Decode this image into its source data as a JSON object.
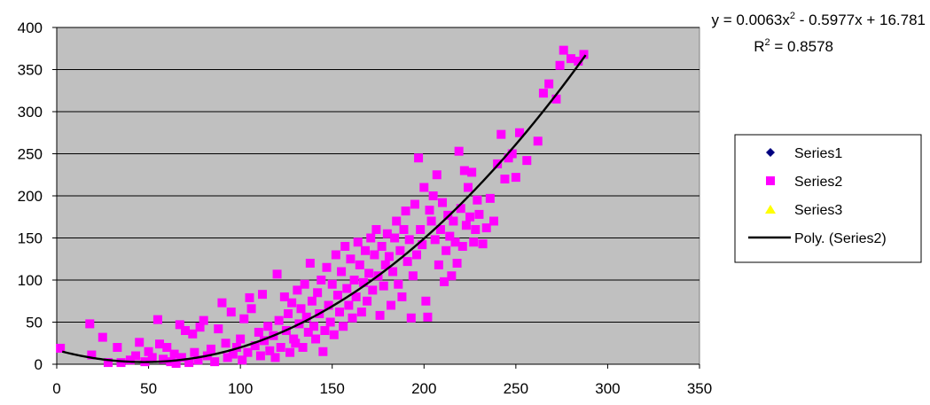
{
  "chart_data": {
    "type": "scatter",
    "title": "",
    "xlabel": "",
    "ylabel": "",
    "xlim": [
      0,
      350
    ],
    "ylim": [
      0,
      400
    ],
    "x_ticks": [
      0,
      50,
      100,
      150,
      200,
      250,
      300,
      350
    ],
    "y_ticks": [
      0,
      50,
      100,
      150,
      200,
      250,
      300,
      350,
      400
    ],
    "grid": "horizontal",
    "plot_background": "#c0c0c0",
    "legend_position": "right",
    "series": [
      {
        "name": "Series1",
        "marker": "diamond",
        "color": "#000080",
        "points": []
      },
      {
        "name": "Series2",
        "marker": "square",
        "color": "#ff00ff",
        "points": [
          [
            2,
            19
          ],
          [
            18,
            48
          ],
          [
            19,
            11
          ],
          [
            25,
            32
          ],
          [
            28,
            2
          ],
          [
            33,
            20
          ],
          [
            35,
            2
          ],
          [
            40,
            5
          ],
          [
            43,
            10
          ],
          [
            45,
            26
          ],
          [
            48,
            3
          ],
          [
            50,
            15
          ],
          [
            52,
            8
          ],
          [
            55,
            53
          ],
          [
            56,
            24
          ],
          [
            58,
            6
          ],
          [
            60,
            20
          ],
          [
            62,
            3
          ],
          [
            64,
            12
          ],
          [
            65,
            1
          ],
          [
            67,
            47
          ],
          [
            68,
            8
          ],
          [
            70,
            40
          ],
          [
            72,
            2
          ],
          [
            74,
            36
          ],
          [
            75,
            14
          ],
          [
            77,
            5
          ],
          [
            78,
            44
          ],
          [
            80,
            52
          ],
          [
            82,
            10
          ],
          [
            84,
            18
          ],
          [
            86,
            3
          ],
          [
            88,
            42
          ],
          [
            90,
            73
          ],
          [
            92,
            25
          ],
          [
            93,
            8
          ],
          [
            95,
            62
          ],
          [
            96,
            12
          ],
          [
            98,
            20
          ],
          [
            100,
            30
          ],
          [
            101,
            5
          ],
          [
            102,
            54
          ],
          [
            104,
            14
          ],
          [
            105,
            79
          ],
          [
            106,
            66
          ],
          [
            108,
            22
          ],
          [
            110,
            38
          ],
          [
            111,
            10
          ],
          [
            112,
            83
          ],
          [
            113,
            28
          ],
          [
            115,
            45
          ],
          [
            116,
            16
          ],
          [
            118,
            34
          ],
          [
            119,
            8
          ],
          [
            120,
            107
          ],
          [
            121,
            52
          ],
          [
            122,
            20
          ],
          [
            124,
            80
          ],
          [
            125,
            40
          ],
          [
            126,
            60
          ],
          [
            127,
            14
          ],
          [
            128,
            73
          ],
          [
            129,
            30
          ],
          [
            130,
            25
          ],
          [
            131,
            88
          ],
          [
            132,
            48
          ],
          [
            133,
            66
          ],
          [
            134,
            20
          ],
          [
            135,
            95
          ],
          [
            136,
            56
          ],
          [
            137,
            38
          ],
          [
            138,
            120
          ],
          [
            139,
            75
          ],
          [
            140,
            45
          ],
          [
            141,
            30
          ],
          [
            142,
            85
          ],
          [
            143,
            60
          ],
          [
            144,
            100
          ],
          [
            145,
            15
          ],
          [
            146,
            40
          ],
          [
            147,
            115
          ],
          [
            148,
            70
          ],
          [
            149,
            50
          ],
          [
            150,
            95
          ],
          [
            151,
            35
          ],
          [
            152,
            130
          ],
          [
            153,
            82
          ],
          [
            154,
            62
          ],
          [
            155,
            110
          ],
          [
            156,
            45
          ],
          [
            157,
            140
          ],
          [
            158,
            90
          ],
          [
            159,
            70
          ],
          [
            160,
            125
          ],
          [
            161,
            55
          ],
          [
            162,
            100
          ],
          [
            163,
            80
          ],
          [
            164,
            145
          ],
          [
            165,
            118
          ],
          [
            166,
            62
          ],
          [
            167,
            97
          ],
          [
            168,
            135
          ],
          [
            169,
            75
          ],
          [
            170,
            108
          ],
          [
            171,
            150
          ],
          [
            172,
            88
          ],
          [
            173,
            130
          ],
          [
            174,
            160
          ],
          [
            175,
            105
          ],
          [
            176,
            58
          ],
          [
            177,
            140
          ],
          [
            178,
            93
          ],
          [
            179,
            118
          ],
          [
            180,
            155
          ],
          [
            181,
            128
          ],
          [
            182,
            70
          ],
          [
            183,
            110
          ],
          [
            184,
            150
          ],
          [
            185,
            170
          ],
          [
            186,
            95
          ],
          [
            187,
            135
          ],
          [
            188,
            80
          ],
          [
            189,
            160
          ],
          [
            190,
            182
          ],
          [
            191,
            122
          ],
          [
            192,
            148
          ],
          [
            193,
            55
          ],
          [
            194,
            105
          ],
          [
            195,
            190
          ],
          [
            196,
            130
          ],
          [
            197,
            245
          ],
          [
            198,
            160
          ],
          [
            199,
            142
          ],
          [
            200,
            210
          ],
          [
            201,
            75
          ],
          [
            202,
            56
          ],
          [
            203,
            183
          ],
          [
            204,
            170
          ],
          [
            205,
            200
          ],
          [
            206,
            148
          ],
          [
            207,
            225
          ],
          [
            208,
            118
          ],
          [
            209,
            160
          ],
          [
            210,
            192
          ],
          [
            211,
            98
          ],
          [
            212,
            135
          ],
          [
            213,
            177
          ],
          [
            214,
            152
          ],
          [
            215,
            105
          ],
          [
            216,
            170
          ],
          [
            217,
            145
          ],
          [
            218,
            120
          ],
          [
            219,
            253
          ],
          [
            220,
            185
          ],
          [
            221,
            140
          ],
          [
            222,
            230
          ],
          [
            223,
            165
          ],
          [
            224,
            210
          ],
          [
            225,
            175
          ],
          [
            226,
            228
          ],
          [
            227,
            145
          ],
          [
            228,
            160
          ],
          [
            229,
            195
          ],
          [
            230,
            178
          ],
          [
            232,
            143
          ],
          [
            234,
            162
          ],
          [
            236,
            197
          ],
          [
            238,
            170
          ],
          [
            240,
            238
          ],
          [
            242,
            273
          ],
          [
            244,
            220
          ],
          [
            246,
            245
          ],
          [
            248,
            250
          ],
          [
            250,
            222
          ],
          [
            252,
            275
          ],
          [
            256,
            242
          ],
          [
            262,
            265
          ],
          [
            265,
            322
          ],
          [
            268,
            333
          ],
          [
            272,
            315
          ],
          [
            274,
            355
          ],
          [
            276,
            373
          ],
          [
            280,
            363
          ],
          [
            284,
            360
          ],
          [
            287,
            368
          ]
        ]
      },
      {
        "name": "Series3",
        "marker": "triangle",
        "color": "#ffff00",
        "points": []
      }
    ],
    "trendline": {
      "name": "Poly. (Series2)",
      "type": "polynomial",
      "order": 2,
      "coefficients": [
        0.0063,
        -0.5977,
        16.781
      ],
      "x_range": [
        3,
        288
      ],
      "color": "#000000",
      "equation_prefix": "y = 0.0063x",
      "equation_suffix": " - 0.5977x + 16.781",
      "r2_prefix": "R",
      "r2_suffix": " = 0.8578",
      "superscript": "2"
    },
    "legend": {
      "entries": [
        "Series1",
        "Series2",
        "Series3",
        "Poly. (Series2)"
      ]
    }
  }
}
